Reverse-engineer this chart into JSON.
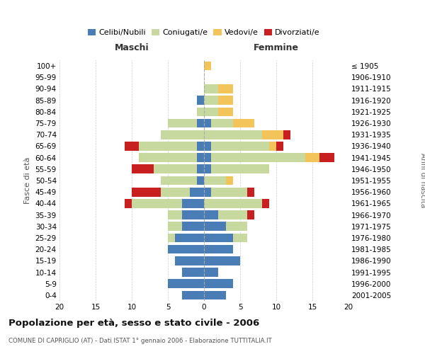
{
  "age_groups": [
    "0-4",
    "5-9",
    "10-14",
    "15-19",
    "20-24",
    "25-29",
    "30-34",
    "35-39",
    "40-44",
    "45-49",
    "50-54",
    "55-59",
    "60-64",
    "65-69",
    "70-74",
    "75-79",
    "80-84",
    "85-89",
    "90-94",
    "95-99",
    "100+"
  ],
  "birth_years": [
    "2001-2005",
    "1996-2000",
    "1991-1995",
    "1986-1990",
    "1981-1985",
    "1976-1980",
    "1971-1975",
    "1966-1970",
    "1961-1965",
    "1956-1960",
    "1951-1955",
    "1946-1950",
    "1941-1945",
    "1936-1940",
    "1931-1935",
    "1926-1930",
    "1921-1925",
    "1916-1920",
    "1911-1915",
    "1906-1910",
    "≤ 1905"
  ],
  "males": {
    "celibi": [
      3,
      5,
      3,
      4,
      5,
      4,
      3,
      3,
      3,
      2,
      1,
      1,
      1,
      1,
      0,
      1,
      0,
      1,
      0,
      0,
      0
    ],
    "coniugati": [
      0,
      0,
      0,
      0,
      0,
      1,
      2,
      2,
      7,
      4,
      5,
      6,
      8,
      8,
      6,
      4,
      1,
      0,
      0,
      0,
      0
    ],
    "vedovi": [
      0,
      0,
      0,
      0,
      0,
      0,
      0,
      0,
      0,
      0,
      0,
      0,
      0,
      0,
      0,
      0,
      0,
      0,
      0,
      0,
      0
    ],
    "divorziati": [
      0,
      0,
      0,
      0,
      0,
      0,
      0,
      0,
      1,
      4,
      0,
      3,
      0,
      2,
      0,
      0,
      0,
      0,
      0,
      0,
      0
    ]
  },
  "females": {
    "nubili": [
      3,
      4,
      2,
      5,
      4,
      4,
      3,
      2,
      0,
      1,
      0,
      1,
      1,
      1,
      0,
      1,
      0,
      0,
      0,
      0,
      0
    ],
    "coniugate": [
      0,
      0,
      0,
      0,
      0,
      2,
      3,
      4,
      8,
      5,
      3,
      8,
      13,
      8,
      8,
      3,
      2,
      2,
      2,
      0,
      0
    ],
    "vedove": [
      0,
      0,
      0,
      0,
      0,
      0,
      0,
      0,
      0,
      0,
      1,
      0,
      2,
      1,
      3,
      3,
      2,
      2,
      2,
      0,
      1
    ],
    "divorziate": [
      0,
      0,
      0,
      0,
      0,
      0,
      0,
      1,
      1,
      1,
      0,
      0,
      2,
      1,
      1,
      0,
      0,
      0,
      0,
      0,
      0
    ]
  },
  "colors": {
    "celibi_nubili": "#4a7db5",
    "coniugati": "#c8d9a0",
    "vedovi": "#f2c45a",
    "divorziati": "#c82020"
  },
  "xlim": 20,
  "title": "Popolazione per età, sesso e stato civile - 2006",
  "subtitle": "COMUNE DI CAPRIGLIO (AT) - Dati ISTAT 1° gennaio 2006 - Elaborazione TUTTITALIA.IT",
  "ylabel_left": "Fasce di età",
  "ylabel_right": "Anni di nascita",
  "xlabel_maschi": "Maschi",
  "xlabel_femmine": "Femmine",
  "background_color": "#ffffff",
  "grid_color": "#cccccc"
}
